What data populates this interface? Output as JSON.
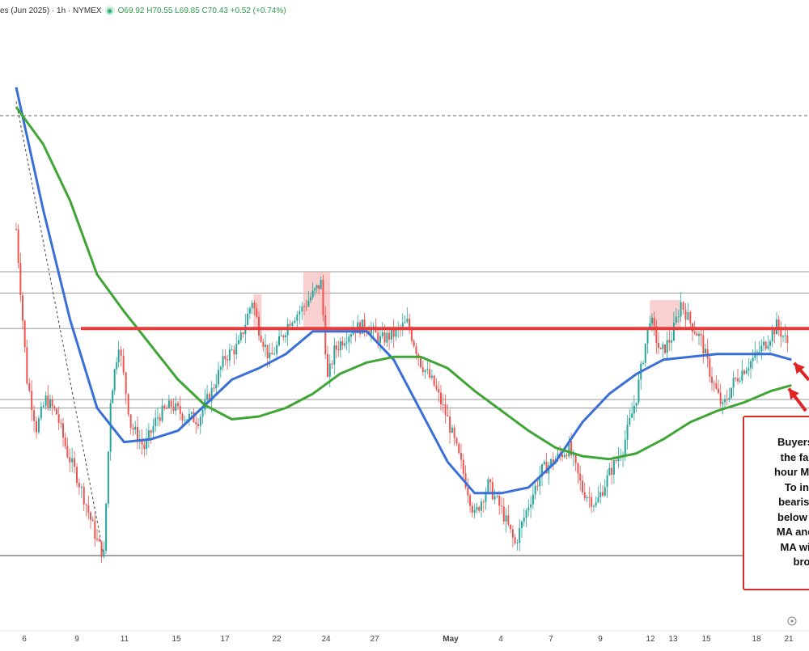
{
  "header": {
    "symbol": "es (Jun 2025) · 1h · NYMEX",
    "indicator_icon": "eye-icon",
    "ohlc": "O69.92 H70.55 L69.85 C70.43 +0.52 (+0.74%)"
  },
  "annotation": {
    "lines": [
      "Buyers to",
      "the fall a",
      "hour MA fo",
      "To incr",
      "bearish b",
      "below the",
      "MA and th",
      "MA will r",
      "bro"
    ]
  },
  "chart_data": {
    "type": "line",
    "title": "",
    "x_tick_labels": [
      "6",
      "9",
      "11",
      "15",
      "17",
      "22",
      "24",
      "27",
      "May",
      "4",
      "7",
      "9",
      "12",
      "13",
      "15",
      "18",
      "21"
    ],
    "resistance_level": 0.8,
    "horizontal_reference_levels": [
      0.0,
      0.52,
      0.55,
      0.8,
      0.925,
      1.0,
      1.55
    ],
    "highlight_zones": [
      {
        "x": [
          17.6,
          18.2
        ],
        "y_range": [
          0.8,
          0.92
        ]
      },
      {
        "x": [
          21.3,
          23.3
        ],
        "y_range": [
          0.8,
          1.0
        ]
      },
      {
        "x": [
          47.0,
          49.3
        ],
        "y_range": [
          0.8,
          0.9
        ]
      }
    ],
    "trend_line": {
      "style": "dashed",
      "points": [
        [
          0,
          1.6
        ],
        [
          6.5,
          0
        ]
      ]
    },
    "series": [
      {
        "name": "",
        "color": "#3a6fd8",
        "x": [
          0,
          2,
          4,
          6,
          8,
          10,
          12,
          14,
          16,
          18,
          20,
          22,
          24,
          26,
          28,
          30,
          32,
          34,
          36,
          38,
          40,
          42,
          44,
          46,
          48,
          50,
          52,
          54,
          56,
          57.5
        ],
        "y": [
          1.65,
          1.22,
          0.83,
          0.52,
          0.4,
          0.41,
          0.44,
          0.53,
          0.62,
          0.66,
          0.71,
          0.79,
          0.79,
          0.79,
          0.69,
          0.51,
          0.33,
          0.22,
          0.22,
          0.24,
          0.33,
          0.47,
          0.57,
          0.64,
          0.69,
          0.7,
          0.71,
          0.71,
          0.71,
          0.69
        ]
      },
      {
        "name": "",
        "color": "#3fa535",
        "x": [
          0,
          2,
          4,
          6,
          8,
          10,
          12,
          14,
          16,
          18,
          20,
          22,
          24,
          26,
          28,
          30,
          32,
          34,
          36,
          38,
          40,
          42,
          44,
          46,
          48,
          50,
          52,
          54,
          56,
          57.5
        ],
        "y": [
          1.58,
          1.45,
          1.25,
          0.99,
          0.86,
          0.74,
          0.62,
          0.53,
          0.48,
          0.49,
          0.52,
          0.57,
          0.64,
          0.68,
          0.7,
          0.7,
          0.66,
          0.58,
          0.51,
          0.44,
          0.38,
          0.35,
          0.34,
          0.36,
          0.41,
          0.47,
          0.51,
          0.54,
          0.58,
          0.6
        ]
      },
      {
        "name": "",
        "color": "#555555",
        "x": [
          0,
          0.8,
          1.5,
          2.2,
          3,
          3.8,
          4.5,
          5.2,
          6,
          6.5,
          7,
          7.6,
          8.5,
          9.5,
          10.5,
          11.5,
          12.5,
          13.5,
          14.5,
          15.5,
          16.5,
          17.5,
          18,
          18.8,
          19.5,
          20.3,
          21.2,
          22,
          22.6,
          23.1,
          23.6,
          24.2,
          25,
          26,
          27,
          28,
          29,
          30,
          31,
          32,
          33,
          34,
          35,
          36,
          37,
          38,
          39,
          40,
          41,
          42,
          43,
          44,
          45,
          46,
          46.5,
          47,
          47.8,
          48.6,
          49.3,
          50,
          50.8,
          51.6,
          52.4,
          53.2,
          54,
          54.8,
          55.6,
          56.4,
          57.2
        ],
        "y": [
          1.15,
          0.62,
          0.45,
          0.55,
          0.5,
          0.36,
          0.28,
          0.18,
          0.05,
          0.0,
          0.55,
          0.75,
          0.46,
          0.38,
          0.49,
          0.53,
          0.49,
          0.48,
          0.58,
          0.7,
          0.74,
          0.9,
          0.8,
          0.69,
          0.75,
          0.83,
          0.87,
          0.92,
          0.96,
          0.62,
          0.72,
          0.76,
          0.8,
          0.81,
          0.76,
          0.78,
          0.82,
          0.68,
          0.6,
          0.48,
          0.32,
          0.14,
          0.25,
          0.16,
          0.04,
          0.18,
          0.3,
          0.34,
          0.38,
          0.23,
          0.18,
          0.29,
          0.38,
          0.56,
          0.7,
          0.84,
          0.71,
          0.77,
          0.89,
          0.82,
          0.76,
          0.62,
          0.52,
          0.61,
          0.66,
          0.7,
          0.75,
          0.81,
          0.75
        ]
      }
    ]
  }
}
